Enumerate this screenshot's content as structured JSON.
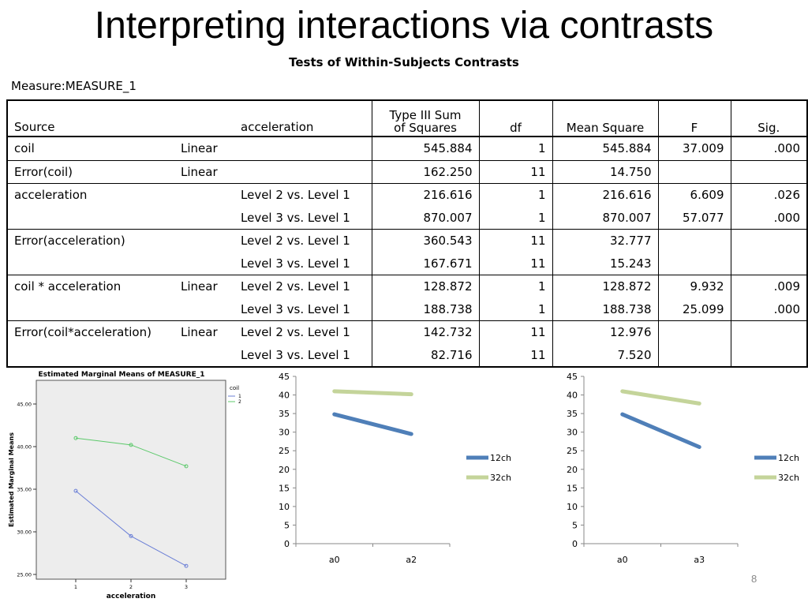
{
  "slide": {
    "title": "Interpreting interactions via contrasts",
    "page_number": "8"
  },
  "table": {
    "caption": "Tests of Within-Subjects Contrasts",
    "measure": "Measure:MEASURE_1",
    "headers": {
      "source": "Source",
      "acceleration": "acceleration",
      "ss_line1": "Type III Sum",
      "ss_line2": "of Squares",
      "df": "df",
      "ms": "Mean Square",
      "f": "F",
      "sig": "Sig."
    },
    "rows": [
      {
        "source": "coil",
        "coil": "Linear",
        "accel": "",
        "ss": "545.884",
        "df": "1",
        "ms": "545.884",
        "f": "37.009",
        "sig": ".000",
        "group_start": true
      },
      {
        "source": "Error(coil)",
        "coil": "Linear",
        "accel": "",
        "ss": "162.250",
        "df": "11",
        "ms": "14.750",
        "f": "",
        "sig": "",
        "group_start": true
      },
      {
        "source": "acceleration",
        "coil": "",
        "accel": "Level 2 vs. Level 1",
        "ss": "216.616",
        "df": "1",
        "ms": "216.616",
        "f": "6.609",
        "sig": ".026",
        "group_start": true
      },
      {
        "source": "",
        "coil": "",
        "accel": "Level 3 vs. Level 1",
        "ss": "870.007",
        "df": "1",
        "ms": "870.007",
        "f": "57.077",
        "sig": ".000",
        "group_start": false
      },
      {
        "source": "Error(acceleration)",
        "coil": "",
        "accel": "Level 2 vs. Level 1",
        "ss": "360.543",
        "df": "11",
        "ms": "32.777",
        "f": "",
        "sig": "",
        "group_start": true
      },
      {
        "source": "",
        "coil": "",
        "accel": "Level 3 vs. Level 1",
        "ss": "167.671",
        "df": "11",
        "ms": "15.243",
        "f": "",
        "sig": "",
        "group_start": false
      },
      {
        "source": "coil * acceleration",
        "coil": "Linear",
        "accel": "Level 2 vs. Level 1",
        "ss": "128.872",
        "df": "1",
        "ms": "128.872",
        "f": "9.932",
        "sig": ".009",
        "group_start": true
      },
      {
        "source": "",
        "coil": "",
        "accel": "Level 3 vs. Level 1",
        "ss": "188.738",
        "df": "1",
        "ms": "188.738",
        "f": "25.099",
        "sig": ".000",
        "group_start": false
      },
      {
        "source": "Error(coil*acceleration)",
        "coil": "Linear",
        "accel": "Level 2 vs. Level 1",
        "ss": "142.732",
        "df": "11",
        "ms": "12.976",
        "f": "",
        "sig": "",
        "group_start": true
      },
      {
        "source": "",
        "coil": "",
        "accel": "Level 3 vs. Level 1",
        "ss": "82.716",
        "df": "11",
        "ms": "7.520",
        "f": "",
        "sig": "",
        "group_start": false
      }
    ]
  },
  "chart_data": [
    {
      "type": "line",
      "title": "Estimated Marginal Means of MEASURE_1",
      "xlabel": "acceleration",
      "ylabel": "Estimated Marginal Means",
      "categories": [
        "1",
        "2",
        "3"
      ],
      "yticks": [
        "25.00",
        "30.00",
        "35.00",
        "40.00",
        "45.00"
      ],
      "ylim": [
        25,
        45
      ],
      "legend_title": "coil",
      "grid": false,
      "legend": "top-right",
      "background": "#ededed",
      "series": [
        {
          "name": "1",
          "values": [
            34.8,
            29.5,
            26.0
          ],
          "color": "#6b7fd6"
        },
        {
          "name": "2",
          "values": [
            41.0,
            40.2,
            37.7
          ],
          "color": "#5cc96b"
        }
      ]
    },
    {
      "type": "line",
      "categories": [
        "a0",
        "a2"
      ],
      "yticks": [
        "0",
        "5",
        "10",
        "15",
        "20",
        "25",
        "30",
        "35",
        "40",
        "45"
      ],
      "ylim": [
        0,
        45
      ],
      "grid": false,
      "legend": "right",
      "series": [
        {
          "name": "12ch",
          "values": [
            34.8,
            29.5
          ],
          "color": "#4f7fb8"
        },
        {
          "name": "32ch",
          "values": [
            41.0,
            40.2
          ],
          "color": "#c4d49a"
        }
      ]
    },
    {
      "type": "line",
      "categories": [
        "a0",
        "a3"
      ],
      "yticks": [
        "0",
        "5",
        "10",
        "15",
        "20",
        "25",
        "30",
        "35",
        "40",
        "45"
      ],
      "ylim": [
        0,
        45
      ],
      "grid": false,
      "legend": "right",
      "series": [
        {
          "name": "12ch",
          "values": [
            34.8,
            26.0
          ],
          "color": "#4f7fb8"
        },
        {
          "name": "32ch",
          "values": [
            41.0,
            37.7
          ],
          "color": "#c4d49a"
        }
      ]
    }
  ]
}
